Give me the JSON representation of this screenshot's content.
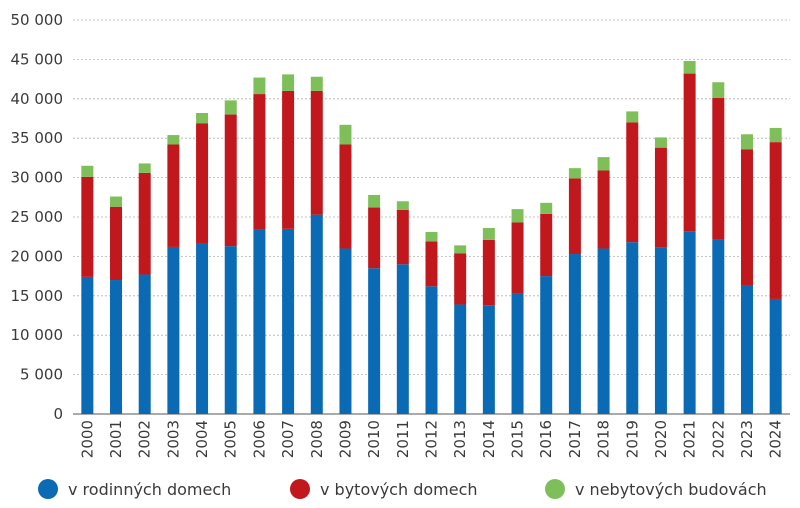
{
  "chart_data": {
    "type": "bar",
    "stacked": true,
    "categories": [
      "2000",
      "2001",
      "2002",
      "2003",
      "2004",
      "2005",
      "2006",
      "2007",
      "2008",
      "2009",
      "2010",
      "2011",
      "2012",
      "2013",
      "2014",
      "2015",
      "2016",
      "2017",
      "2018",
      "2019",
      "2020",
      "2021",
      "2022",
      "2023",
      "2024"
    ],
    "series": [
      {
        "name": "v rodinných domech",
        "color": "#0a6ab4",
        "values": [
          17400,
          17000,
          17700,
          21200,
          21700,
          21300,
          23400,
          23500,
          25300,
          21000,
          18500,
          19000,
          16200,
          13900,
          13800,
          15300,
          17500,
          20300,
          21000,
          21800,
          21100,
          23200,
          22100,
          16300,
          14600
        ]
      },
      {
        "name": "v bytových domech",
        "color": "#c0181d",
        "values": [
          12700,
          9300,
          12900,
          13000,
          15200,
          16700,
          17200,
          17500,
          15700,
          13200,
          7700,
          6900,
          5700,
          6500,
          8300,
          9000,
          7900,
          9600,
          9900,
          15200,
          12700,
          20000,
          18000,
          17300,
          19900
        ]
      },
      {
        "name": "v nebytových budovách",
        "color": "#7fbf5a",
        "values": [
          1400,
          1300,
          1200,
          1200,
          1300,
          1800,
          2100,
          2100,
          1800,
          2500,
          1600,
          1100,
          1200,
          1000,
          1500,
          1700,
          1400,
          1300,
          1700,
          1400,
          1300,
          1600,
          2000,
          1900,
          1800
        ]
      }
    ],
    "y_ticks": [
      "0",
      "5 000",
      "10 000",
      "15 000",
      "20 000",
      "25 000",
      "30 000",
      "35 000",
      "40 000",
      "45 000",
      "50 000"
    ],
    "ylim": [
      0,
      50000
    ],
    "grid": true,
    "legend_position": "bottom"
  }
}
